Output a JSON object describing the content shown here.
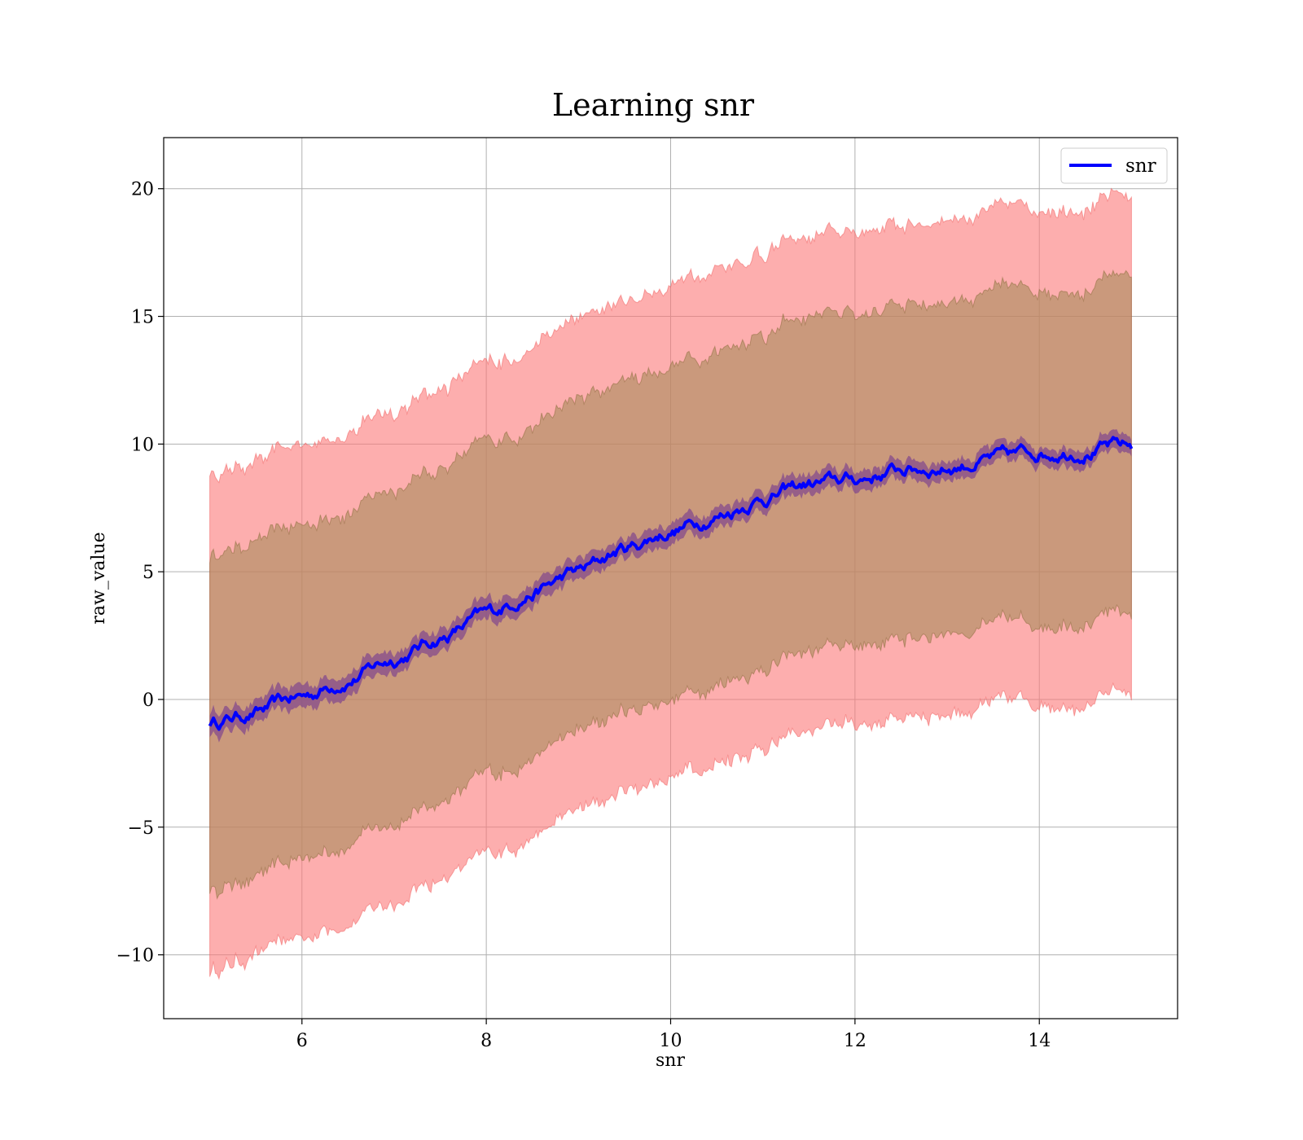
{
  "chart_data": {
    "type": "line",
    "title": "Learning snr",
    "xlabel": "snr",
    "ylabel": "raw_value",
    "xlim": [
      4.5,
      15.5
    ],
    "ylim": [
      -12.5,
      22
    ],
    "xticks": [
      6,
      8,
      10,
      12,
      14
    ],
    "yticks": [
      -10,
      -5,
      0,
      5,
      10,
      15,
      20
    ],
    "xtick_labels": [
      "6",
      "8",
      "10",
      "12",
      "14"
    ],
    "ytick_labels": [
      "−10",
      "−5",
      "0",
      "5",
      "10",
      "15",
      "20"
    ],
    "grid": true,
    "legend": {
      "placement": "top-right",
      "entries": [
        "snr"
      ]
    },
    "colors": {
      "line": "#0000ff",
      "band_outer": "#fc7878",
      "band_middle": "#a88a5a",
      "band_inner": "#7a3f8f"
    },
    "series": [
      {
        "name": "snr",
        "x": [
          5,
          5.5,
          6,
          6.5,
          7,
          7.5,
          8,
          8.5,
          9,
          9.5,
          10,
          10.5,
          11,
          11.5,
          12,
          12.5,
          13,
          13.5,
          14,
          14.5,
          15
        ],
        "y": [
          -0.9,
          -0.5,
          0.1,
          0.8,
          1.6,
          2.4,
          3.3,
          4.2,
          5.0,
          5.9,
          6.6,
          7.2,
          7.9,
          8.4,
          8.6,
          9.0,
          9.1,
          9.4,
          9.7,
          9.8,
          9.9
        ],
        "band_1sd_low": [
          -7.5,
          -6.9,
          -6.3,
          -5.5,
          -4.8,
          -4.0,
          -3.1,
          -2.2,
          -1.3,
          -0.5,
          0.1,
          0.7,
          1.3,
          1.8,
          2.1,
          2.4,
          2.7,
          2.9,
          3.0,
          3.2,
          3.3
        ],
        "band_1sd_high": [
          5.6,
          6.2,
          6.8,
          7.5,
          8.3,
          9.1,
          9.9,
          10.8,
          11.6,
          12.5,
          13.1,
          13.7,
          14.4,
          14.9,
          15.1,
          15.5,
          15.7,
          15.9,
          16.1,
          16.3,
          16.5
        ],
        "band_2sd_low": [
          -10.6,
          -10.0,
          -9.4,
          -8.6,
          -7.9,
          -7.0,
          -6.2,
          -5.3,
          -4.4,
          -3.6,
          -3.0,
          -2.4,
          -1.8,
          -1.3,
          -1.0,
          -0.7,
          -0.4,
          -0.2,
          -0.1,
          0.0,
          0.2
        ],
        "band_2sd_high": [
          8.8,
          9.3,
          9.9,
          10.6,
          11.4,
          12.2,
          13.0,
          13.9,
          14.8,
          15.6,
          16.3,
          16.9,
          17.6,
          18.0,
          18.3,
          18.6,
          18.9,
          19.1,
          19.3,
          19.5,
          19.6
        ]
      }
    ]
  }
}
